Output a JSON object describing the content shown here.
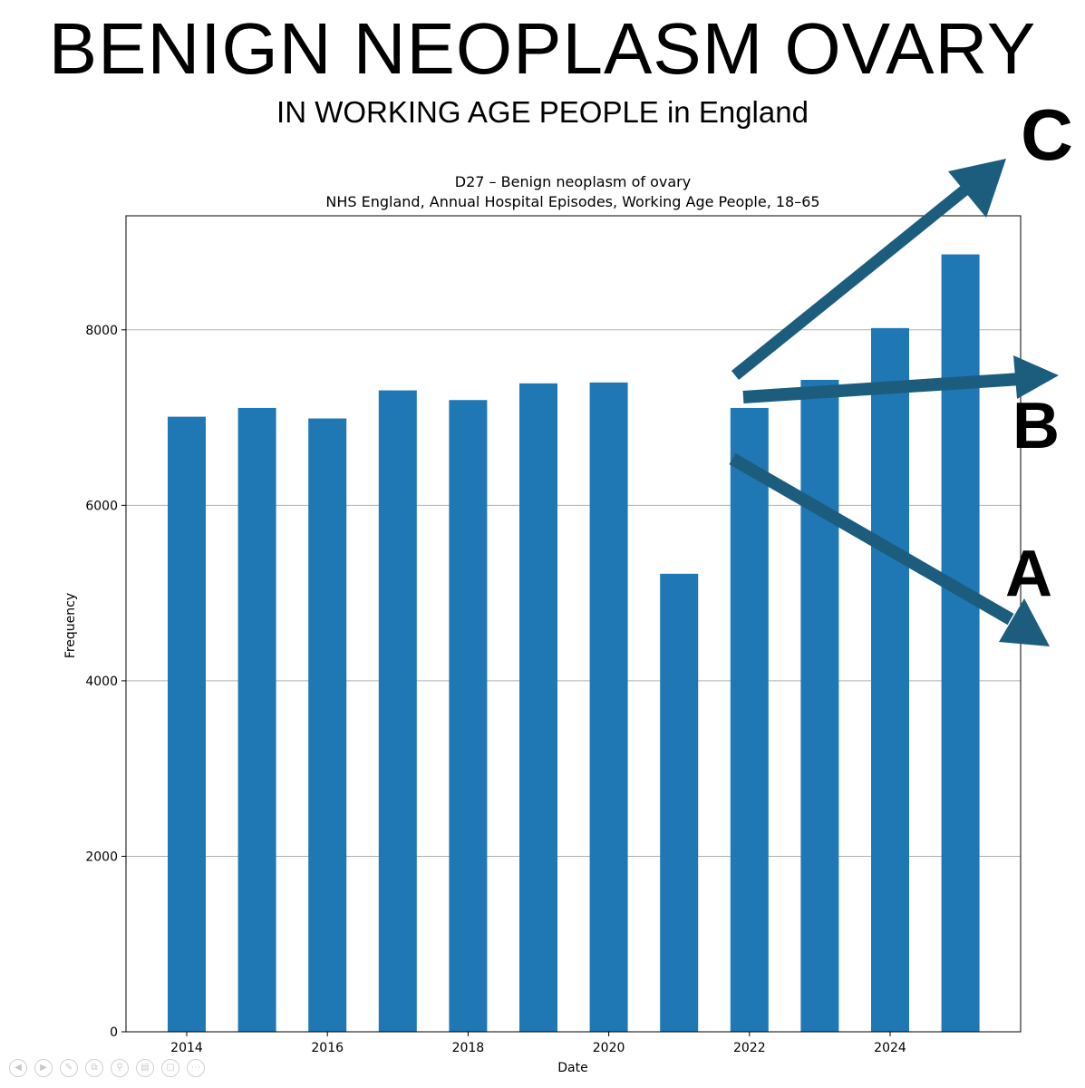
{
  "header": {
    "title": "BENIGN NEOPLASM OVARY",
    "subtitle": "IN WORKING AGE PEOPLE in England"
  },
  "chart_data": {
    "type": "bar",
    "title": "D27 – Benign neoplasm of ovary",
    "subtitle": "NHS England, Annual Hospital Episodes, Working Age People, 18–65",
    "xlabel": "Date",
    "ylabel": "Frequency",
    "x": [
      2014,
      2015,
      2016,
      2017,
      2018,
      2019,
      2020,
      2021,
      2022,
      2023,
      2024,
      2025
    ],
    "values": [
      7010,
      7110,
      6990,
      7310,
      7200,
      7390,
      7400,
      5220,
      7110,
      7430,
      8020,
      8860
    ],
    "xticks": [
      "2014",
      "2016",
      "2018",
      "2020",
      "2022",
      "2024"
    ],
    "yticks": [
      "0",
      "2000",
      "4000",
      "6000",
      "8000"
    ],
    "ylim": [
      0,
      9300
    ],
    "grid": "horizontal",
    "bar_color": "#1f77b4"
  },
  "annotations": {
    "arrow_color": "#1c5d7e",
    "labels": [
      {
        "id": "C",
        "text": "C"
      },
      {
        "id": "B",
        "text": "B"
      },
      {
        "id": "A",
        "text": "A"
      }
    ]
  },
  "toolbar": {
    "icons": [
      "previous-icon",
      "next-icon",
      "pen-icon",
      "copy-icon",
      "zoom-icon",
      "subtitles-icon",
      "camera-off-icon",
      "more-icon"
    ]
  }
}
